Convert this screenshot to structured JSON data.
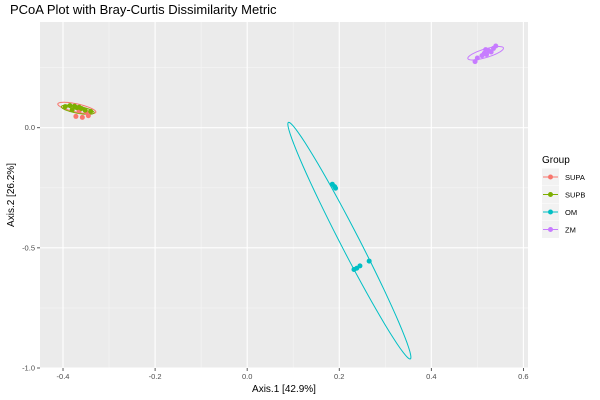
{
  "chart_data": {
    "type": "scatter",
    "title": "PCoA Plot with Bray-Curtis Dissimilarity Metric",
    "xlabel": "Axis.1   [42.9%]",
    "ylabel": "Axis.2   [26.2%]",
    "xlim": [
      -0.45,
      0.61
    ],
    "ylim": [
      -1.0,
      0.44
    ],
    "x_ticks": [
      -0.4,
      -0.2,
      0.0,
      0.2,
      0.4,
      0.6
    ],
    "x_tick_labels": [
      "-0.4",
      "-0.2",
      "0.0",
      "0.2",
      "0.4",
      "0.6"
    ],
    "y_ticks": [
      -1.0,
      -0.5,
      0.0
    ],
    "y_tick_labels": [
      "-1.0",
      "-0.5",
      "0.0"
    ],
    "grid": true,
    "legend_position": "right",
    "legend_title": "Group",
    "series": [
      {
        "name": "SUPA",
        "color": "#F8766D",
        "points": [
          [
            -0.372,
            0.047
          ],
          [
            -0.358,
            0.043
          ],
          [
            -0.345,
            0.05
          ],
          [
            -0.365,
            0.07
          ],
          [
            -0.35,
            0.065
          ]
        ],
        "ellipse": {
          "cx": -0.37,
          "cy": 0.082,
          "rx": 0.045,
          "ry": 0.016,
          "angle_deg": -25
        }
      },
      {
        "name": "SUPB",
        "color": "#7CAE00",
        "points": [
          [
            -0.395,
            0.088
          ],
          [
            -0.385,
            0.092
          ],
          [
            -0.375,
            0.09
          ],
          [
            -0.365,
            0.085
          ],
          [
            -0.36,
            0.08
          ],
          [
            -0.352,
            0.073
          ],
          [
            -0.34,
            0.068
          ],
          [
            -0.37,
            0.083
          ],
          [
            -0.38,
            0.075
          ]
        ],
        "ellipse": {
          "cx": -0.368,
          "cy": 0.075,
          "rx": 0.038,
          "ry": 0.014,
          "angle_deg": -22
        }
      },
      {
        "name": "OM",
        "color": "#00BFC4",
        "points": [
          [
            0.185,
            -0.235
          ],
          [
            0.19,
            -0.245
          ],
          [
            0.192,
            -0.252
          ],
          [
            0.232,
            -0.59
          ],
          [
            0.238,
            -0.585
          ],
          [
            0.245,
            -0.575
          ],
          [
            0.265,
            -0.555
          ]
        ],
        "ellipse": {
          "cx": 0.222,
          "cy": -0.47,
          "rx": 0.51,
          "ry": 0.022,
          "angle_deg": -75
        }
      },
      {
        "name": "ZM",
        "color": "#C77CFF",
        "points": [
          [
            0.495,
            0.275
          ],
          [
            0.5,
            0.29
          ],
          [
            0.51,
            0.3
          ],
          [
            0.515,
            0.31
          ],
          [
            0.52,
            0.305
          ],
          [
            0.525,
            0.32
          ],
          [
            0.53,
            0.315
          ],
          [
            0.535,
            0.33
          ],
          [
            0.54,
            0.34
          ],
          [
            0.518,
            0.325
          ]
        ],
        "ellipse": {
          "cx": 0.518,
          "cy": 0.31,
          "rx": 0.045,
          "ry": 0.016,
          "angle_deg": 33
        }
      }
    ]
  }
}
